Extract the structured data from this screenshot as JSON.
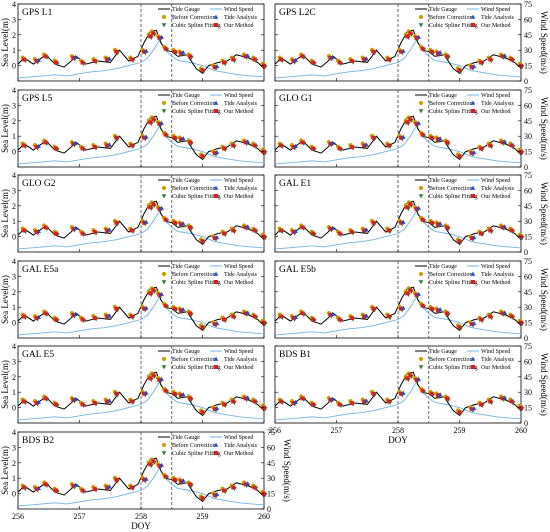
{
  "figure": {
    "ylabel_left": "Sea Level(m)",
    "ylabel_right": "Wind Speed(m/s)",
    "xlabel": "DOY",
    "x_ticks": [
      "256",
      "257",
      "258",
      "259",
      "260"
    ],
    "y_left_ticks": [
      "0",
      "1",
      "2",
      "3",
      "4"
    ],
    "y_right_ticks": [
      "0",
      "15",
      "30",
      "45",
      "60",
      "75"
    ],
    "vlines_doy": [
      258.0,
      258.5
    ],
    "colors": {
      "tide_gauge": "#000000",
      "wind_speed": "#6fb4e6",
      "before_correction": "#c8a000",
      "tide_analysis": "#1f4ec9",
      "cubic_spline": "#2e7d32",
      "our_method": "#d62020",
      "vline": "#444444"
    },
    "legend": {
      "tide_gauge": "Tide Gauge",
      "wind_speed": "Wind Speed",
      "before_correction": "Before Correction",
      "tide_analysis": "Tide Analysis",
      "cubic_spline": "Cubic Spline Fitting",
      "our_method": "Our Method"
    }
  },
  "chart_data": {
    "type": "line",
    "panels": [
      "GPS L1",
      "GPS L2C",
      "GPS L5",
      "GLO G1",
      "GLO G2",
      "GAL E1",
      "GAL E5a",
      "GAL E5b",
      "GAL E5",
      "BDS B1",
      "BDS B2"
    ],
    "xlim": [
      256,
      260
    ],
    "ylim_left": [
      -1,
      4
    ],
    "ylim_right": [
      0,
      75
    ],
    "tide_gauge": {
      "x": [
        256.0,
        256.1,
        256.25,
        256.45,
        256.6,
        256.75,
        256.95,
        257.1,
        257.3,
        257.5,
        257.65,
        257.8,
        257.95,
        258.05,
        258.15,
        258.25,
        258.32,
        258.4,
        258.5,
        258.6,
        258.75,
        258.9,
        259.0,
        259.1,
        259.25,
        259.4,
        259.55,
        259.75,
        259.9,
        260.0
      ],
      "y": [
        0.1,
        0.5,
        0.1,
        0.7,
        0.1,
        -0.1,
        0.6,
        0.1,
        0.3,
        0.2,
        1.0,
        0.3,
        0.6,
        1.5,
        2.2,
        2.3,
        1.5,
        1.0,
        0.9,
        0.6,
        0.7,
        -0.2,
        -0.5,
        0.0,
        0.2,
        0.3,
        0.7,
        0.5,
        0.2,
        -0.2
      ]
    },
    "wind_speed": {
      "x": [
        256.0,
        256.2,
        256.4,
        256.6,
        256.8,
        257.0,
        257.2,
        257.4,
        257.6,
        257.8,
        258.0,
        258.1,
        258.2,
        258.3,
        258.4,
        258.5,
        258.6,
        258.8,
        259.0,
        259.2,
        259.4,
        259.6,
        259.8,
        260.0
      ],
      "y": [
        3,
        4,
        5,
        6,
        5,
        7,
        9,
        10,
        12,
        15,
        18,
        22,
        30,
        40,
        30,
        24,
        20,
        18,
        15,
        10,
        8,
        6,
        5,
        4
      ]
    },
    "gnss_retrievals": {
      "x": [
        256.1,
        256.3,
        256.45,
        256.62,
        256.9,
        257.05,
        257.25,
        257.45,
        257.6,
        257.85,
        258.05,
        258.15,
        258.2,
        258.3,
        258.4,
        258.55,
        258.65,
        258.8,
        259.0,
        259.2,
        259.35,
        259.5,
        259.7,
        259.85,
        260.0
      ],
      "y": [
        0.4,
        0.3,
        0.6,
        0.2,
        0.5,
        0.2,
        0.3,
        0.4,
        0.9,
        0.4,
        0.9,
        1.9,
        2.1,
        1.8,
        1.1,
        0.9,
        0.8,
        0.6,
        -0.3,
        -0.1,
        0.2,
        0.4,
        0.6,
        0.4,
        0.0
      ]
    }
  }
}
